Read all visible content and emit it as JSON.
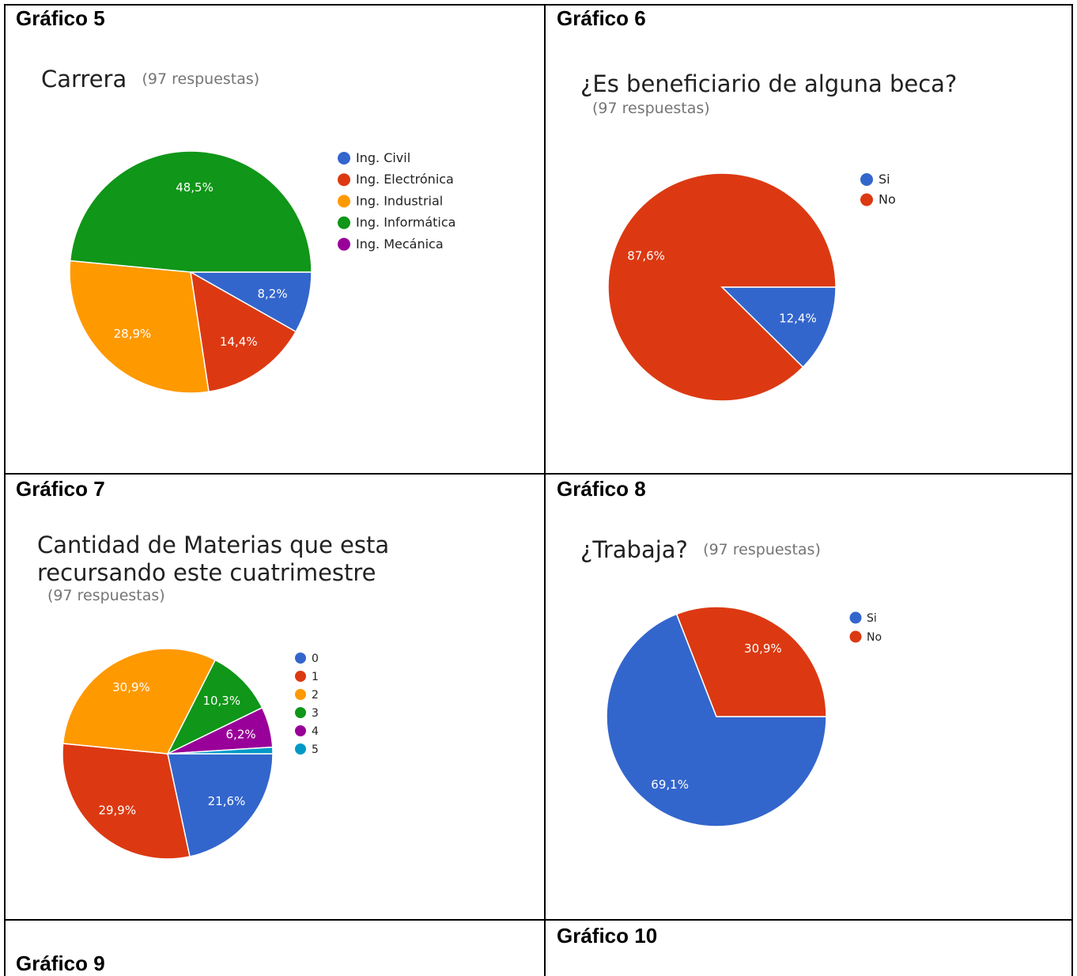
{
  "cells": [
    {
      "heading": "Gráfico 5",
      "title": "Carrera",
      "subtitle": "(97 respuestas)",
      "chart_data": {
        "type": "pie",
        "title": "Carrera",
        "subtitle": "(97 respuestas)",
        "categories": [
          "Ing. Civil",
          "Ing. Electrónica",
          "Ing. Industrial",
          "Ing. Informática",
          "Ing. Mecánica"
        ],
        "values": [
          8.2,
          14.4,
          28.9,
          48.5,
          0
        ],
        "labels": [
          "8,2%",
          "14,4%",
          "28,9%",
          "48,5%",
          ""
        ],
        "colors": [
          "#3366cc",
          "#dc3912",
          "#ff9900",
          "#109618",
          "#990099"
        ],
        "legend_position": "right"
      }
    },
    {
      "heading": "Gráfico 6",
      "title": "¿Es beneficiario de alguna beca?",
      "subtitle": "(97 respuestas)",
      "chart_data": {
        "type": "pie",
        "title": "¿Es beneficiario de alguna beca?",
        "subtitle": "(97 respuestas)",
        "categories": [
          "Si",
          "No"
        ],
        "values": [
          12.4,
          87.6
        ],
        "labels": [
          "12,4%",
          "87,6%"
        ],
        "colors": [
          "#3366cc",
          "#dc3912"
        ],
        "legend_position": "right"
      }
    },
    {
      "heading": "Gráfico 7",
      "title_line1": "Cantidad de Materias que esta",
      "title_line2": "recursando este cuatrimestre",
      "subtitle": "(97 respuestas)",
      "chart_data": {
        "type": "pie",
        "title": "Cantidad de Materias que esta recursando este cuatrimestre",
        "subtitle": "(97 respuestas)",
        "categories": [
          "0",
          "1",
          "2",
          "3",
          "4",
          "5"
        ],
        "values": [
          21.6,
          29.9,
          30.9,
          10.3,
          6.2,
          1.0
        ],
        "labels": [
          "21,6%",
          "29,9%",
          "30,9%",
          "10,3%",
          "6,2%",
          ""
        ],
        "colors": [
          "#3366cc",
          "#dc3912",
          "#ff9900",
          "#109618",
          "#990099",
          "#0099c6"
        ],
        "legend_position": "right"
      }
    },
    {
      "heading": "Gráfico 8",
      "title": "¿Trabaja?",
      "subtitle": "(97 respuestas)",
      "chart_data": {
        "type": "pie",
        "title": "¿Trabaja?",
        "subtitle": "(97 respuestas)",
        "categories": [
          "Si",
          "No"
        ],
        "values": [
          69.1,
          30.9
        ],
        "labels": [
          "69,1%",
          "30,9%"
        ],
        "colors": [
          "#3366cc",
          "#dc3912"
        ],
        "legend_position": "right"
      }
    },
    {
      "heading": "Gráfico 9"
    },
    {
      "heading": "Gráfico 10"
    }
  ]
}
